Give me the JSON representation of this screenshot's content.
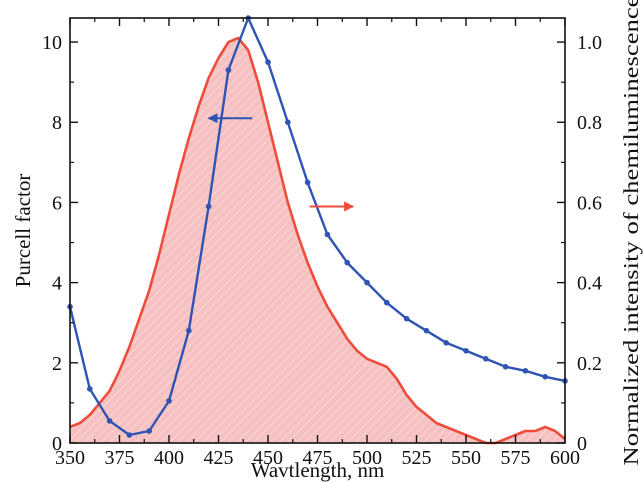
{
  "chart_data": {
    "type": "line",
    "title": "",
    "xlabel": "Wavtlength, nm",
    "ylabel": "Purcell factor",
    "y2label": "Normalized intensity of chemiluminescence",
    "xlim": [
      350,
      600
    ],
    "ylim": [
      0,
      10.6
    ],
    "y2lim": [
      0,
      1.06
    ],
    "xticks": [
      "350",
      "375",
      "400",
      "425",
      "450",
      "475",
      "500",
      "525",
      "550",
      "575",
      "600"
    ],
    "yticks": [
      "0",
      "2",
      "4",
      "6",
      "8",
      "10"
    ],
    "y2ticks": [
      "0",
      "0.2",
      "0.4",
      "0.6",
      "0.8",
      "1.0"
    ],
    "grid": false,
    "colors": {
      "purcell": "#2f54b4",
      "chemi": "#ef4c3c",
      "fill": "#f4a6a6"
    },
    "series": [
      {
        "axis": "left",
        "x": [
          350,
          360,
          370,
          380,
          390,
          400,
          410,
          420,
          430,
          440,
          450,
          460,
          470,
          480,
          490,
          500,
          510,
          520,
          530,
          540,
          550,
          560,
          570,
          580,
          590,
          600
        ],
        "values": [
          3.4,
          1.35,
          0.55,
          0.2,
          0.3,
          1.05,
          2.8,
          5.9,
          9.3,
          10.6,
          9.5,
          8.0,
          6.5,
          5.2,
          4.5,
          4.0,
          3.5,
          3.1,
          2.8,
          2.5,
          2.3,
          2.1,
          1.9,
          1.8,
          1.65,
          1.55
        ]
      },
      {
        "axis": "right",
        "filled": true,
        "x": [
          350,
          355,
          360,
          365,
          370,
          375,
          380,
          385,
          390,
          395,
          400,
          405,
          410,
          415,
          420,
          425,
          430,
          435,
          440,
          445,
          450,
          455,
          460,
          465,
          470,
          475,
          480,
          485,
          490,
          495,
          500,
          505,
          510,
          515,
          520,
          525,
          530,
          535,
          540,
          545,
          550,
          555,
          560,
          565,
          570,
          575,
          580,
          585,
          590,
          595,
          600
        ],
        "values": [
          0.04,
          0.05,
          0.07,
          0.1,
          0.13,
          0.18,
          0.24,
          0.31,
          0.38,
          0.47,
          0.57,
          0.67,
          0.76,
          0.84,
          0.91,
          0.96,
          1.0,
          1.01,
          0.98,
          0.9,
          0.8,
          0.7,
          0.6,
          0.52,
          0.45,
          0.39,
          0.34,
          0.3,
          0.26,
          0.23,
          0.21,
          0.2,
          0.19,
          0.16,
          0.12,
          0.09,
          0.07,
          0.05,
          0.04,
          0.03,
          0.02,
          0.01,
          0.0,
          0.0,
          0.01,
          0.02,
          0.03,
          0.03,
          0.04,
          0.03,
          0.01
        ]
      }
    ],
    "arrows": [
      {
        "direction": "left",
        "axis": "left",
        "color": "#2f54b4",
        "x_from": 442,
        "x_to": 420,
        "y": 8.1
      },
      {
        "direction": "right",
        "axis": "right",
        "color": "#ef4c3c",
        "x_from": 471,
        "x_to": 493,
        "y": 0.59
      }
    ]
  }
}
